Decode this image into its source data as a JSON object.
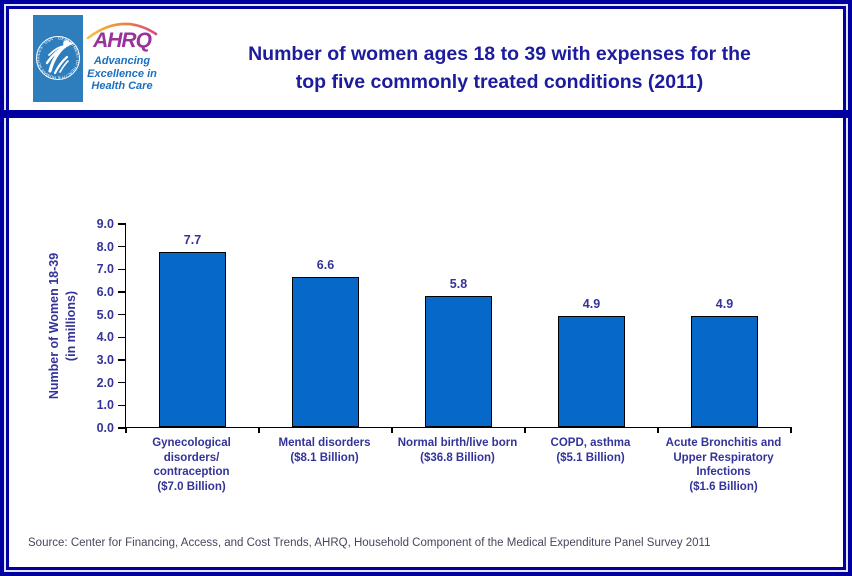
{
  "header": {
    "logo": {
      "hhs_seal_ring_text": "DEPARTMENT OF HEALTH & HUMAN SERVICES · USA",
      "ahrq_acronym": "AHRQ",
      "ahrq_tagline_lines": [
        "Advancing",
        "Excellence in",
        "Health Care"
      ]
    },
    "title_line1": "Number of women ages 18 to 39 with expenses for the",
    "title_line2": "top five commonly treated conditions (2011)"
  },
  "chart_data": {
    "type": "bar",
    "title": "Number of women ages 18 to 39 with expenses for the top five commonly treated conditions (2011)",
    "xlabel": "",
    "ylabel": "Number of Women 18-39 (in millions)",
    "ylabel_line1": "Number of Women 18-39",
    "ylabel_line2": "(in millions)",
    "categories": [
      [
        "Gynecological",
        "disorders/",
        "contraception",
        "($7.0 Billion)"
      ],
      [
        "Mental disorders",
        "($8.1 Billion)"
      ],
      [
        "Normal birth/live born",
        "($36.8 Billion)"
      ],
      [
        "COPD, asthma",
        "($5.1 Billion)"
      ],
      [
        "Acute Bronchitis and",
        "Upper Respiratory",
        "Infections",
        "($1.6 Billion)"
      ]
    ],
    "values": [
      7.7,
      6.6,
      5.8,
      4.9,
      4.9
    ],
    "value_labels": [
      "7.7",
      "6.6",
      "5.8",
      "4.9",
      "4.9"
    ],
    "ylim": [
      0,
      9
    ],
    "ytick_step": 1.0,
    "ytick_decimals": 1,
    "grid": false,
    "legend": false,
    "bar_color": "#0669C9",
    "bar_border_color": "#000000",
    "label_color": "#333399"
  },
  "footer": {
    "source": "Source: Center for Financing, Access, and Cost Trends, AHRQ, Household Component of the Medical Expenditure Panel Survey 2011"
  },
  "colors": {
    "frame_navy": "#0000A0",
    "title_navy": "#1C1C9C",
    "hhs_blue": "#2E7EBE",
    "ahrq_purple": "#993399",
    "ahrq_blue": "#1A70BE",
    "source_text": "#47475E"
  }
}
